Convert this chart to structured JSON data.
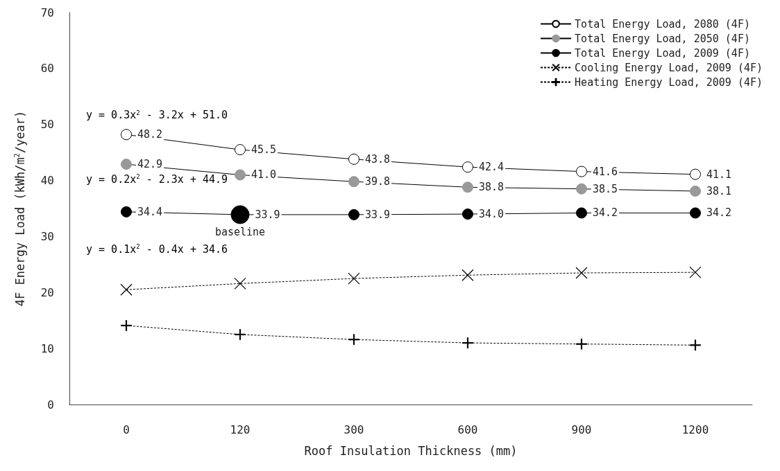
{
  "chart_data": {
    "type": "line",
    "xlabel": "Roof Insulation Thickness (mm)",
    "ylabel": "4F Energy Load (kWh/m$^{2}$/year)",
    "categories": [
      "0",
      "120",
      "300",
      "600",
      "900",
      "1200"
    ],
    "series": [
      {
        "name": "Total Energy Load, 2080 (4F)",
        "color": "#ffffff",
        "marker": "circle",
        "line_style": "solid",
        "values": [
          48.2,
          45.5,
          43.8,
          42.4,
          41.6,
          41.1
        ],
        "value_labels": [
          "48.2",
          "45.5",
          "43.8",
          "42.4",
          "41.6",
          "41.1"
        ]
      },
      {
        "name": "Total Energy Load, 2050 (4F)",
        "color": "#999999",
        "marker": "circle",
        "line_style": "solid",
        "values": [
          42.9,
          41.0,
          39.8,
          38.8,
          38.5,
          38.1
        ],
        "value_labels": [
          "42.9",
          "41.0",
          "39.8",
          "38.8",
          "38.5",
          "38.1"
        ]
      },
      {
        "name": "Total Energy Load, 2009 (4F)",
        "color": "#000000",
        "marker": "circle",
        "line_style": "solid",
        "values": [
          34.4,
          33.9,
          33.9,
          34.0,
          34.2,
          34.2
        ],
        "value_labels": [
          "34.4",
          "33.9",
          "33.9",
          "34.0",
          "34.2",
          "34.2"
        ]
      },
      {
        "name": "Cooling Energy Load, 2009 (4F)",
        "color": "#000000",
        "marker": "cross",
        "line_style": "dashed",
        "values": [
          20.5,
          21.6,
          22.5,
          23.1,
          23.5,
          23.6
        ]
      },
      {
        "name": "Heating Energy Load, 2009 (4F)",
        "color": "#000000",
        "marker": "plus",
        "line_style": "dashed",
        "values": [
          14.1,
          12.5,
          11.6,
          11.0,
          10.8,
          10.6
        ]
      }
    ],
    "ylim": [
      0,
      70
    ],
    "yticks": [
      0,
      10,
      20,
      30,
      40,
      50,
      60,
      70
    ],
    "grid": false,
    "legend": "top right",
    "annotations": [
      "y = 0.3x$^{2}$ - 3.2x + 51.0",
      "y = 0.2x$^{2}$ - 2.3x + 44.9",
      "y = 0.1x$^{2}$ - 0.4x + 34.6",
      {
        "text": "baseline",
        "x": "120",
        "y": 33.9
      }
    ]
  }
}
